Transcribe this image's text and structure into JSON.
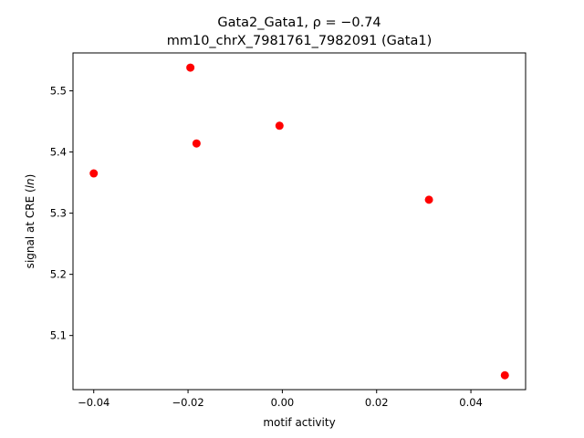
{
  "chart_data": {
    "type": "scatter",
    "title_line1": "Gata2_Gata1, ρ = −0.74",
    "title_line2": "mm10_chrX_7981761_7982091 (Gata1)",
    "xlabel": "motif activity",
    "ylabel_prefix": "signal at CRE (",
    "ylabel_italic": "ln",
    "ylabel_suffix": ")",
    "xlim": [
      -0.0444,
      0.0516
    ],
    "ylim": [
      5.0115,
      5.562
    ],
    "xticks": [
      -0.04,
      -0.02,
      0.0,
      0.02,
      0.04
    ],
    "xtick_labels": [
      "−0.04",
      "−0.02",
      "0.00",
      "0.02",
      "0.04"
    ],
    "yticks": [
      5.1,
      5.2,
      5.3,
      5.4,
      5.5
    ],
    "ytick_labels": [
      "5.1",
      "5.2",
      "5.3",
      "5.4",
      "5.5"
    ],
    "grid": false,
    "marker_color": "#ff0000",
    "points": [
      {
        "x": -0.04,
        "y": 5.365
      },
      {
        "x": -0.0195,
        "y": 5.538
      },
      {
        "x": -0.0182,
        "y": 5.414
      },
      {
        "x": -0.0006,
        "y": 5.443
      },
      {
        "x": 0.0311,
        "y": 5.322
      },
      {
        "x": 0.0472,
        "y": 5.035
      }
    ]
  }
}
